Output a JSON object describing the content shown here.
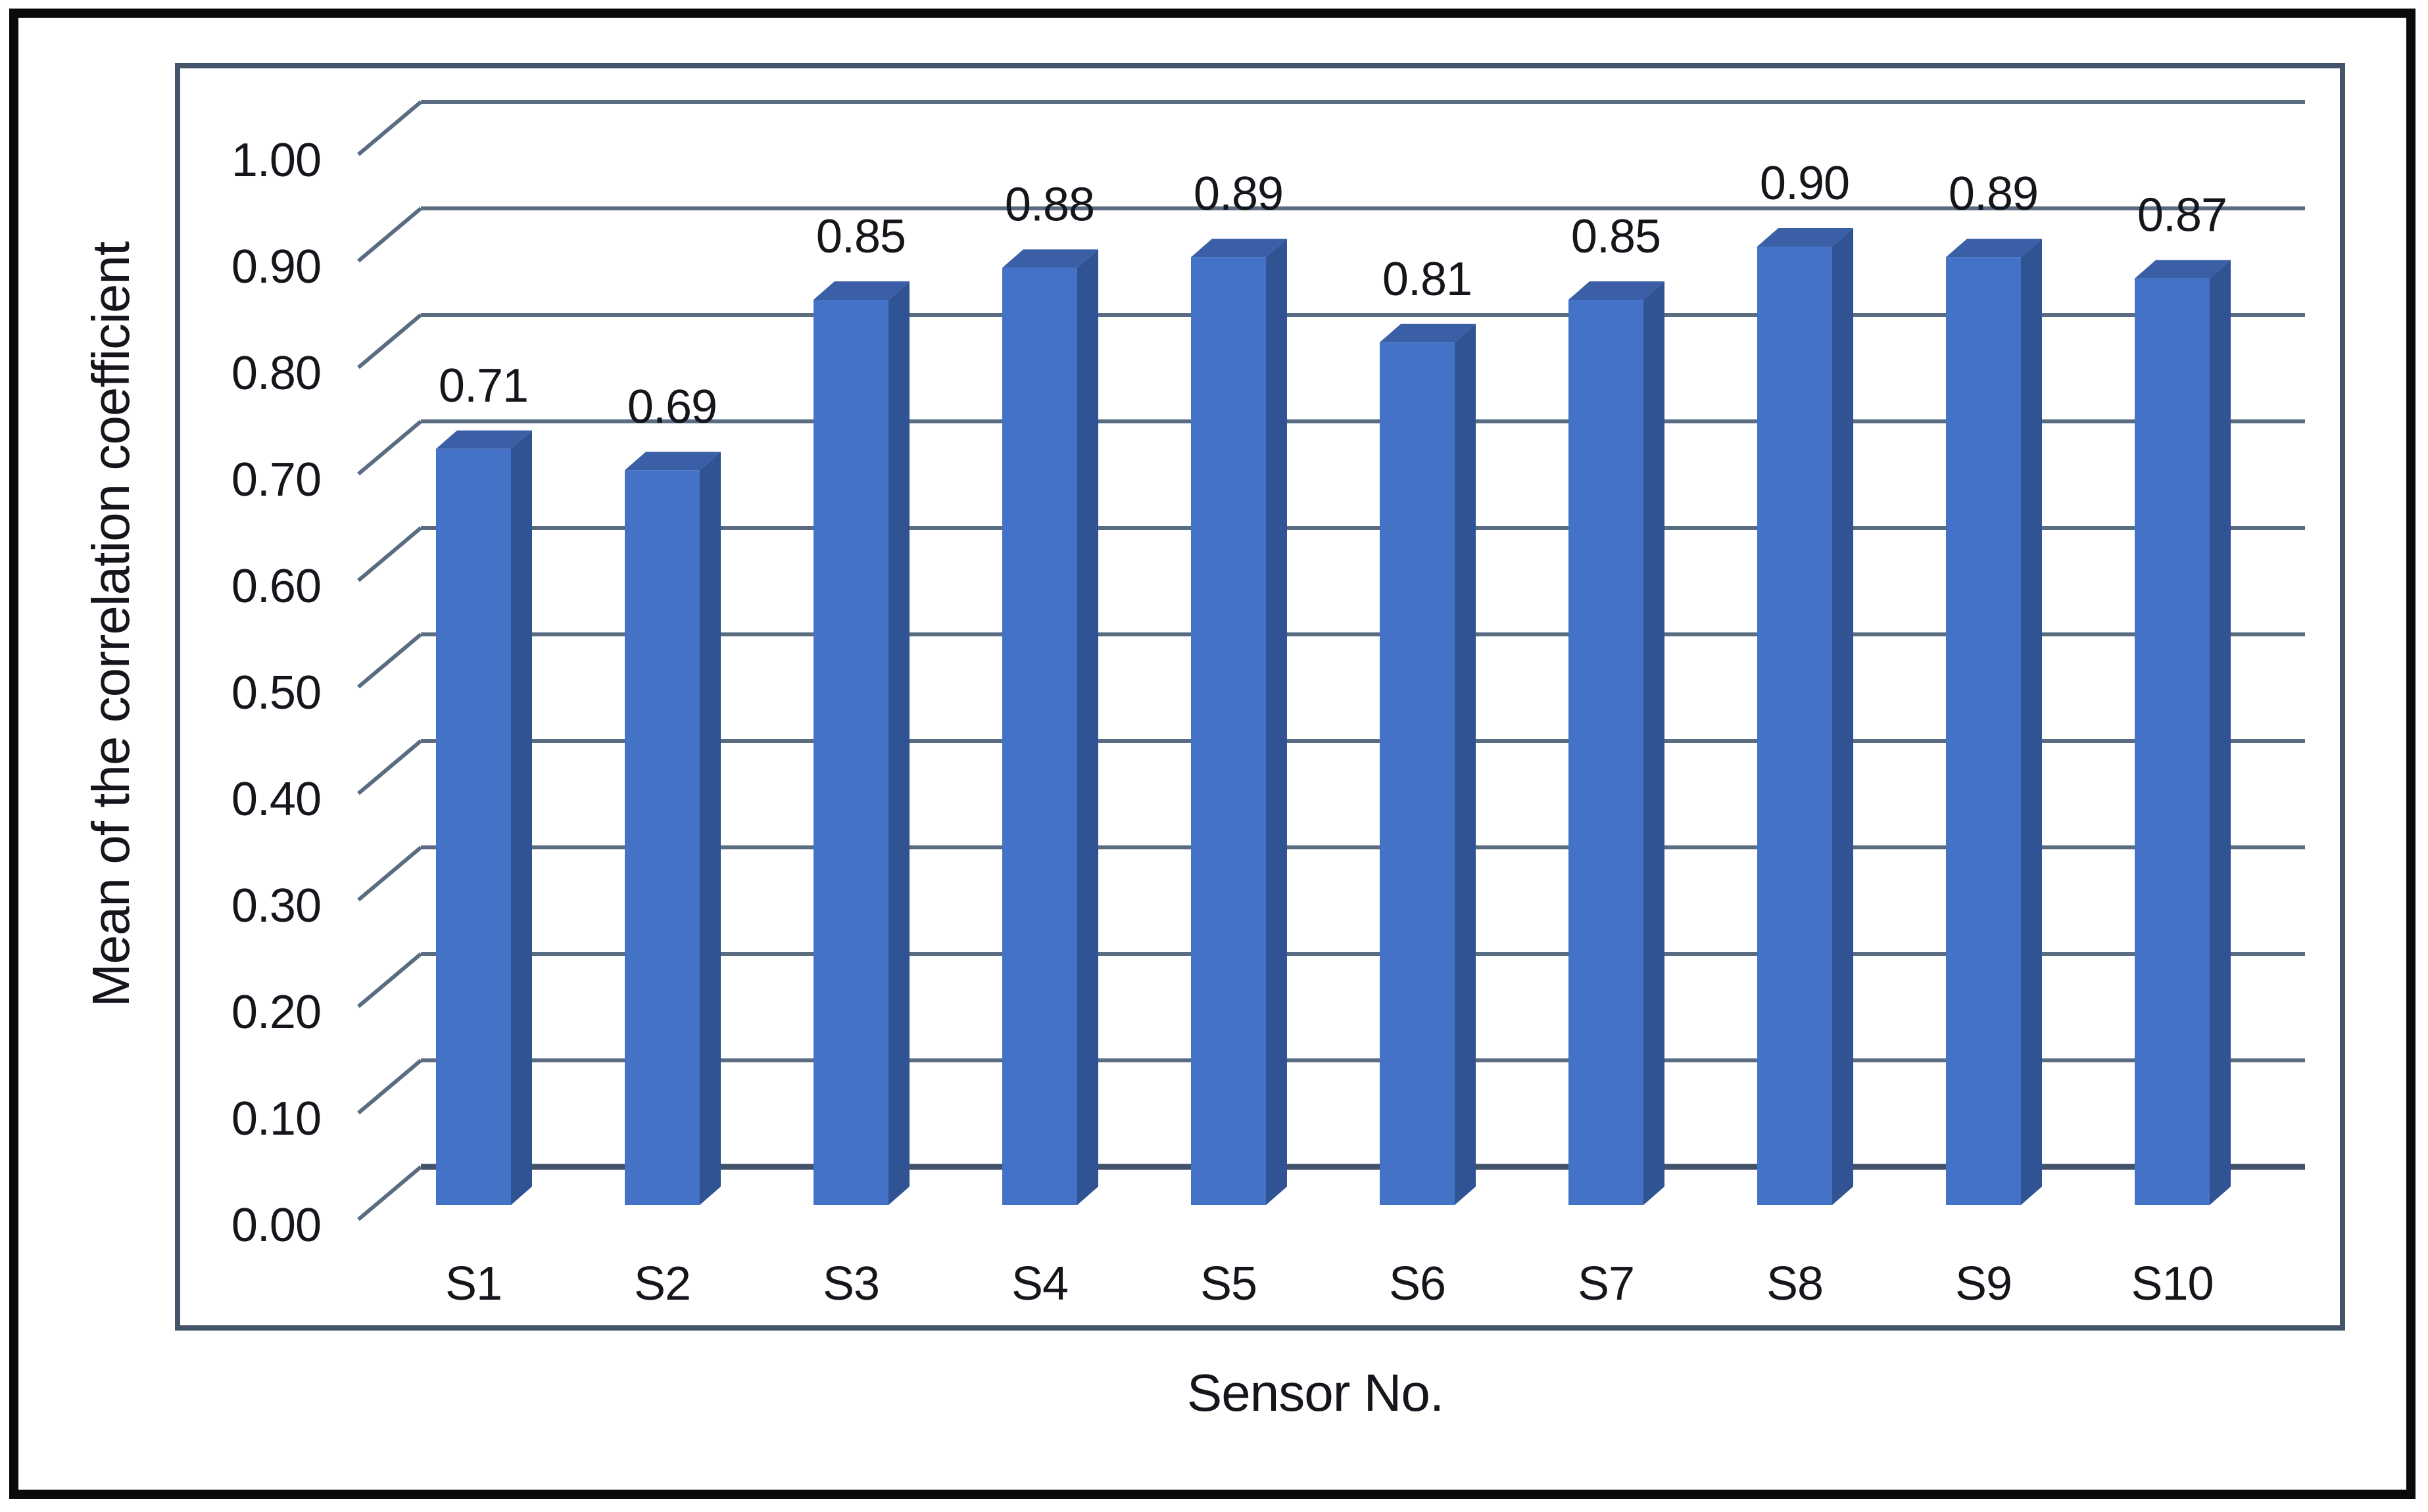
{
  "figure": {
    "background": "#FFFFFF",
    "border_color": "#000000"
  },
  "chart_data": {
    "type": "bar",
    "variant": "3d-column",
    "title": "",
    "xlabel": "Sensor No.",
    "ylabel": "Mean of the correlation coefficient",
    "categories": [
      "S1",
      "S2",
      "S3",
      "S4",
      "S5",
      "S6",
      "S7",
      "S8",
      "S9",
      "S10"
    ],
    "values": [
      0.71,
      0.69,
      0.85,
      0.88,
      0.89,
      0.81,
      0.85,
      0.9,
      0.89,
      0.87
    ],
    "data_labels": [
      "0.71",
      "0.69",
      "0.85",
      "0.88",
      "0.89",
      "0.81",
      "0.85",
      "0.90",
      "0.89",
      "0.87"
    ],
    "ylim": [
      0.0,
      1.0
    ],
    "ytick_step": 0.1,
    "ytick_labels": [
      "0.00",
      "0.10",
      "0.20",
      "0.30",
      "0.40",
      "0.50",
      "0.60",
      "0.70",
      "0.80",
      "0.90",
      "1.00"
    ],
    "grid": true,
    "legend": "none",
    "colors": {
      "bar_front": "#4472C6",
      "bar_top": "#3A5FA6",
      "bar_side": "#305394",
      "gridline": "#5A6C82",
      "axis_line": "#42526A",
      "chart_border": "#44546A",
      "figure_border": "#0A0A0A",
      "text": "#14161C",
      "background": "#FFFFFF"
    }
  }
}
